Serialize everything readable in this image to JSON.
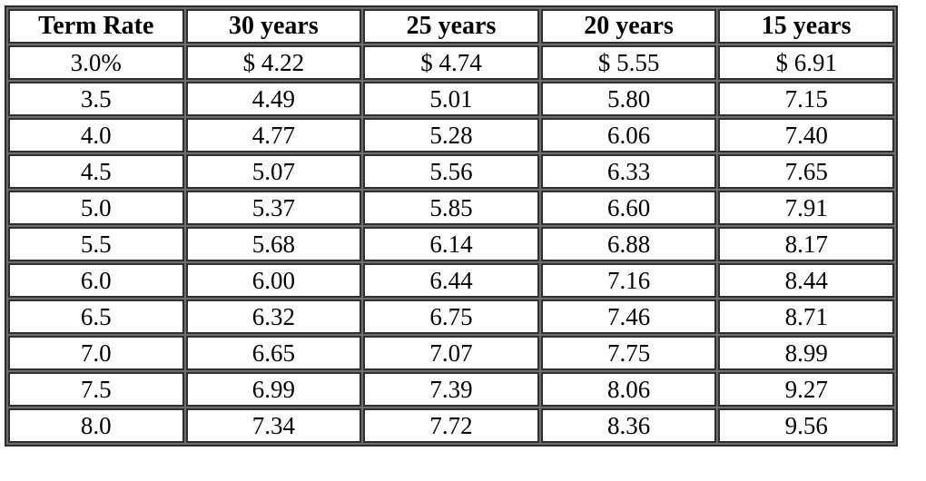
{
  "colors": {
    "background": "#ffffff",
    "cell_background": "#ffffff",
    "border_dark": "#2f2f2f",
    "border_gray": "#6e6e6e",
    "text": "#000000"
  },
  "table": {
    "columns": [
      "Term Rate",
      "30 years",
      "25 years",
      "20 years",
      "15 years"
    ],
    "rows": [
      [
        "3.0%",
        "$ 4.22",
        "$ 4.74",
        "$ 5.55",
        "$ 6.91"
      ],
      [
        "3.5",
        "4.49",
        "5.01",
        "5.80",
        "7.15"
      ],
      [
        "4.0",
        "4.77",
        "5.28",
        "6.06",
        "7.40"
      ],
      [
        "4.5",
        "5.07",
        "5.56",
        "6.33",
        "7.65"
      ],
      [
        "5.0",
        "5.37",
        "5.85",
        "6.60",
        "7.91"
      ],
      [
        "5.5",
        "5.68",
        "6.14",
        "6.88",
        "8.17"
      ],
      [
        "6.0",
        "6.00",
        "6.44",
        "7.16",
        "8.44"
      ],
      [
        "6.5",
        "6.32",
        "6.75",
        "7.46",
        "8.71"
      ],
      [
        "7.0",
        "6.65",
        "7.07",
        "7.75",
        "8.99"
      ],
      [
        "7.5",
        "6.99",
        "7.39",
        "8.06",
        "9.27"
      ],
      [
        "8.0",
        "7.34",
        "7.72",
        "8.36",
        "9.56"
      ]
    ]
  },
  "chart_data": {
    "type": "table",
    "title": "",
    "columns": [
      "Term Rate",
      "30 years",
      "25 years",
      "20 years",
      "15 years"
    ],
    "row_header_label": "Term Rate",
    "rates_percent": [
      3.0,
      3.5,
      4.0,
      4.5,
      5.0,
      5.5,
      6.0,
      6.5,
      7.0,
      7.5,
      8.0
    ],
    "series": [
      {
        "name": "30 years",
        "values": [
          4.22,
          4.49,
          4.77,
          5.07,
          5.37,
          5.68,
          6.0,
          6.32,
          6.65,
          6.99,
          7.34
        ]
      },
      {
        "name": "25 years",
        "values": [
          4.74,
          5.01,
          5.28,
          5.56,
          5.85,
          6.14,
          6.44,
          6.75,
          7.07,
          7.39,
          7.72
        ]
      },
      {
        "name": "20 years",
        "values": [
          5.55,
          5.8,
          6.06,
          6.33,
          6.6,
          6.88,
          7.16,
          7.46,
          7.75,
          8.06,
          8.36
        ]
      },
      {
        "name": "15 years",
        "values": [
          6.91,
          7.15,
          7.4,
          7.65,
          7.91,
          8.17,
          8.44,
          8.71,
          8.99,
          9.27,
          9.56
        ]
      }
    ],
    "value_unit_hint": "$ per period (dollar sign shown on first row only)"
  }
}
